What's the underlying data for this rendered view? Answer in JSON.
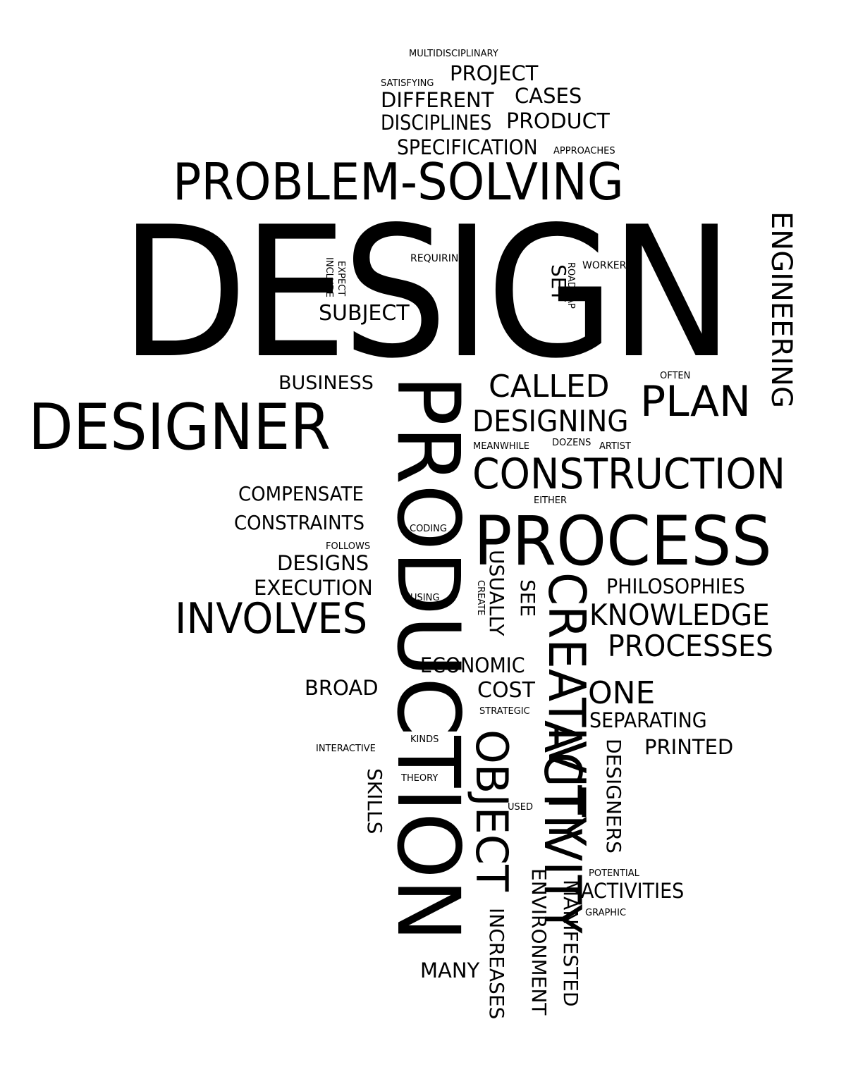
{
  "words": {
    "multidisciplinary": "MULTIDISCIPLINARY",
    "project": "PROJECT",
    "satisfying": "SATISFYING",
    "different": "DIFFERENT",
    "cases": "CASES",
    "disciplines": "DISCIPLINES",
    "product": "PRODUCT",
    "specification": "SPECIFICATION",
    "approaches": "APPROACHES",
    "problem_solving": "PROBLEM-SOLVING",
    "design": "DESIGN",
    "engineering": "ENGINEERING",
    "requiring": "REQUIRING",
    "expect": "EXPECT",
    "include": "INCLUDE",
    "roadmap": "ROADMAP",
    "set": "SET",
    "worker": "WORKER",
    "subject": "SUBJECT",
    "business": "BUSINESS",
    "called": "CALLED",
    "often": "OFTEN",
    "plan": "PLAN",
    "designer": "DESIGNER",
    "designing": "DESIGNING",
    "meanwhile": "MEANWHILE",
    "dozens": "DOZENS",
    "artist": "ARTIST",
    "production": "PRODUCTION",
    "construction": "CONSTRUCTION",
    "compensate": "COMPENSATE",
    "either": "EITHER",
    "constraints": "CONSTRAINTS",
    "coding": "CODING",
    "process": "PROCESS",
    "follows": "FOLLOWS",
    "designs": "DESIGNS",
    "usually": "USUALLY",
    "create": "CREATE",
    "see": "SEE",
    "philosophies": "PHILOSOPHIES",
    "execution": "EXECUTION",
    "using": "USING",
    "creativity": "CREATIVITY",
    "involves": "INVOLVES",
    "knowledge": "KNOWLEDGE",
    "processes": "PROCESSES",
    "economic": "ECONOMIC",
    "broad": "BROAD",
    "cost": "COST",
    "one": "ONE",
    "strategic": "STRATEGIC",
    "separating": "SEPARATING",
    "kinds": "KINDS",
    "object": "OBJECT",
    "interactive": "INTERACTIVE",
    "designers": "DESIGNERS",
    "printed": "PRINTED",
    "skills": "SKILLS",
    "theory": "THEORY",
    "activity": "ACTIVITY",
    "used": "USED",
    "potential": "POTENTIAL",
    "environment": "ENVIRONMENT",
    "activities": "ACTIVITIES",
    "manifested": "MANIFESTED",
    "graphic": "GRAPHIC",
    "increases": "INCREASES",
    "many": "MANY"
  },
  "colors": {
    "ink": "#000000",
    "background": "#ffffff"
  }
}
